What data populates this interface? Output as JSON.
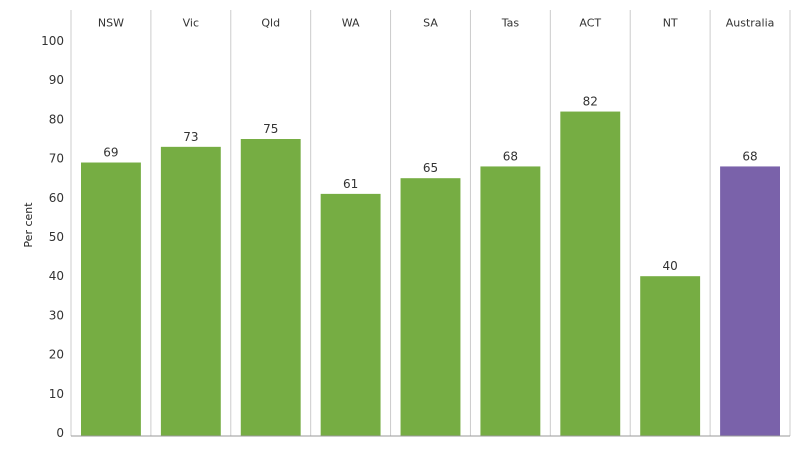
{
  "chart_data": {
    "type": "bar",
    "categories": [
      "NSW",
      "Vic",
      "Qld",
      "WA",
      "SA",
      "Tas",
      "ACT",
      "NT",
      "Australia"
    ],
    "values": [
      69,
      73,
      75,
      61,
      65,
      68,
      82,
      40,
      68
    ],
    "data_labels": [
      "69",
      "73",
      "75",
      "61",
      "65",
      "68",
      "82",
      "40",
      "68"
    ],
    "ylabel": "Per cent",
    "ylim": [
      0,
      100
    ],
    "yticks": [
      0,
      10,
      20,
      30,
      40,
      50,
      60,
      70,
      80,
      90,
      100
    ],
    "category_axis_position": "top",
    "grid": false,
    "colors": {
      "state_bar": "#76ad43",
      "national_bar": "#7a62aa",
      "divider": "#cccccc",
      "axis_line": "#999999"
    },
    "highlight_category": "Australia"
  }
}
